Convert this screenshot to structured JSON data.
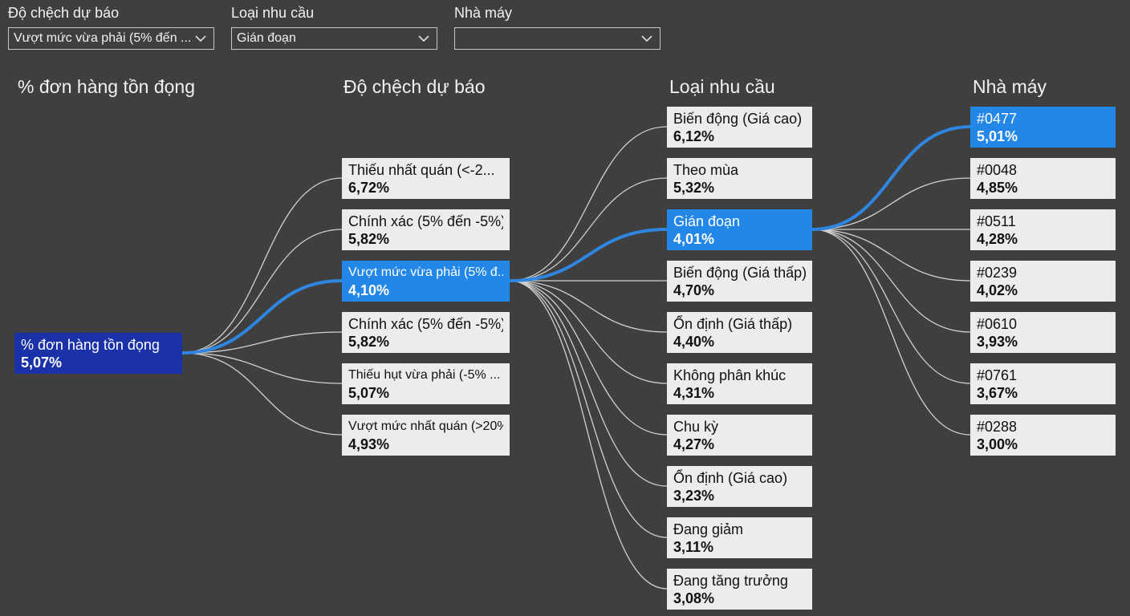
{
  "slicers": [
    {
      "label": "Độ chệch dự báo",
      "value": "Vượt mức vừa phải (5% đến ..."
    },
    {
      "label": "Loại nhu cầu",
      "value": "Gián đoạn"
    },
    {
      "label": "Nhà máy",
      "value": ""
    }
  ],
  "tree": {
    "headers": [
      "% đơn hàng tồn đọng",
      "Độ chệch dự báo",
      "Loại nhu cầu",
      "Nhà máy"
    ],
    "root": {
      "label": "% đơn hàng tồn đọng",
      "value": "5,07%"
    },
    "level1": [
      {
        "label": "Thiếu nhất quán (<-2...",
        "value": "6,72%"
      },
      {
        "label": "Chính xác (5% đến -5%)",
        "value": "5,82%"
      },
      {
        "label": "Vượt mức vừa phải (5% đ...",
        "value": "4,10%"
      },
      {
        "label": "Chính xác (5% đến -5%)",
        "value": "5,82%"
      },
      {
        "label": "Thiếu hụt vừa phải (-5% ...",
        "value": "5,07%"
      },
      {
        "label": "Vượt mức nhất quán (>20%)",
        "value": "4,93%"
      }
    ],
    "level2": [
      {
        "label": "Biến động (Giá cao)",
        "value": "6,12%"
      },
      {
        "label": "Theo mùa",
        "value": "5,32%"
      },
      {
        "label": "Gián đoạn",
        "value": "4,01%"
      },
      {
        "label": "Biến động (Giá thấp)",
        "value": "4,70%"
      },
      {
        "label": "Ổn định (Giá thấp)",
        "value": "4,40%"
      },
      {
        "label": "Không phân khúc",
        "value": "4,31%"
      },
      {
        "label": "Chu kỳ",
        "value": "4,27%"
      },
      {
        "label": "Ổn định (Giá cao)",
        "value": "3,23%"
      },
      {
        "label": "Đang giảm",
        "value": "3,11%"
      },
      {
        "label": "Đang tăng trưởng",
        "value": "3,08%"
      }
    ],
    "level3": [
      {
        "label": "#0477",
        "value": "5,01%"
      },
      {
        "label": "#0048",
        "value": "4,85%"
      },
      {
        "label": "#0511",
        "value": "4,28%"
      },
      {
        "label": "#0239",
        "value": "4,02%"
      },
      {
        "label": "#0610",
        "value": "3,93%"
      },
      {
        "label": "#0761",
        "value": "3,67%"
      },
      {
        "label": "#0288",
        "value": "3,00%"
      }
    ]
  },
  "colors": {
    "background": "#3f3f3f",
    "root_node": "#1a31a8",
    "selected_node": "#2287e6",
    "node": "#ececec",
    "connector": "#d0d0d0",
    "highlight_connector": "#2f86e0"
  }
}
